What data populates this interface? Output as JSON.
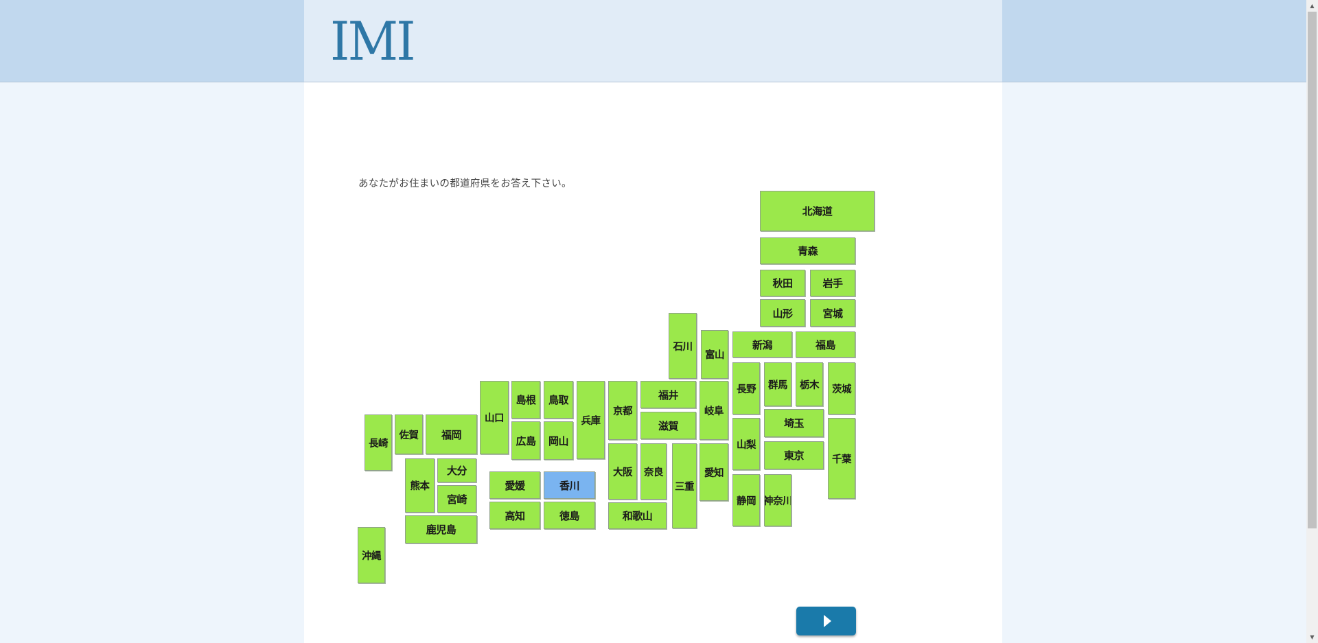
{
  "header": {
    "logo_text": "IMI"
  },
  "question": "あなたがお住まいの都道府県をお答え下さい。",
  "selected": "香川",
  "prefectures": [
    {
      "key": "hokkaido",
      "label": "北海道"
    },
    {
      "key": "aomori",
      "label": "青森"
    },
    {
      "key": "akita",
      "label": "秋田"
    },
    {
      "key": "iwate",
      "label": "岩手"
    },
    {
      "key": "yamagata",
      "label": "山形"
    },
    {
      "key": "miyagi",
      "label": "宮城"
    },
    {
      "key": "ishikawa",
      "label": "石川"
    },
    {
      "key": "toyama",
      "label": "富山"
    },
    {
      "key": "niigata",
      "label": "新潟"
    },
    {
      "key": "fukushima",
      "label": "福島"
    },
    {
      "key": "nagano",
      "label": "長野"
    },
    {
      "key": "gunma",
      "label": "群馬"
    },
    {
      "key": "tochigi",
      "label": "栃木"
    },
    {
      "key": "ibaraki",
      "label": "茨城"
    },
    {
      "key": "saitama",
      "label": "埼玉"
    },
    {
      "key": "yamanashi",
      "label": "山梨"
    },
    {
      "key": "tokyo",
      "label": "東京"
    },
    {
      "key": "chiba",
      "label": "千葉"
    },
    {
      "key": "shizuoka",
      "label": "静岡"
    },
    {
      "key": "kanagawa",
      "label": "神奈川"
    },
    {
      "key": "gifu",
      "label": "岐阜"
    },
    {
      "key": "aichi",
      "label": "愛知"
    },
    {
      "key": "mie",
      "label": "三重"
    },
    {
      "key": "fukui",
      "label": "福井"
    },
    {
      "key": "shiga",
      "label": "滋賀"
    },
    {
      "key": "kyoto",
      "label": "京都"
    },
    {
      "key": "osaka",
      "label": "大阪"
    },
    {
      "key": "nara",
      "label": "奈良"
    },
    {
      "key": "wakayama",
      "label": "和歌山"
    },
    {
      "key": "hyogo",
      "label": "兵庫"
    },
    {
      "key": "tottori",
      "label": "鳥取"
    },
    {
      "key": "shimane",
      "label": "島根"
    },
    {
      "key": "okayama",
      "label": "岡山"
    },
    {
      "key": "hiroshima",
      "label": "広島"
    },
    {
      "key": "yamaguchi",
      "label": "山口"
    },
    {
      "key": "kagawa",
      "label": "香川"
    },
    {
      "key": "tokushima",
      "label": "徳島"
    },
    {
      "key": "ehime",
      "label": "愛媛"
    },
    {
      "key": "kochi",
      "label": "高知"
    },
    {
      "key": "fukuoka",
      "label": "福岡"
    },
    {
      "key": "saga",
      "label": "佐賀"
    },
    {
      "key": "nagasaki",
      "label": "長崎"
    },
    {
      "key": "oita",
      "label": "大分"
    },
    {
      "key": "kumamoto",
      "label": "熊本"
    },
    {
      "key": "miyazaki",
      "label": "宮崎"
    },
    {
      "key": "kagoshima",
      "label": "鹿児島"
    },
    {
      "key": "okinawa",
      "label": "沖縄"
    }
  ],
  "next_button": {
    "icon": "play-triangle-icon"
  },
  "colors": {
    "tile": "#9be84b",
    "selected_tile": "#7ab4f0",
    "button": "#1a7aaa",
    "logo": "#2e77a6"
  }
}
